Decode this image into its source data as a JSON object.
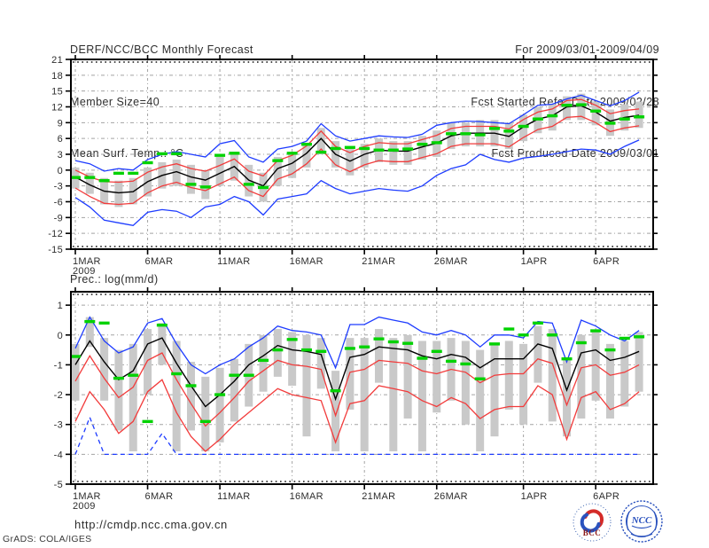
{
  "header": {
    "title": "DERF/NCC/BCC Monthly Forecast",
    "member_size": "Member Size=40",
    "panel1_label": "Mean Surf. Temp.: °C",
    "valid_range": "For 2009/03/01-2009/04/09",
    "refer_date": "Fcst Started Refer Date 2009/02/28",
    "produced_date": "Fcst Produced Date 2009/03/01"
  },
  "panel2_label": "Prec.: log(mm/d)",
  "footer": {
    "url": "http://cmdp.ncc.cma.gov.cn",
    "grads_credit": "GrADS: COLA/IGES",
    "bcc_label": "BCC",
    "ncc_label": "NCC"
  },
  "colors": {
    "line_blue": "#1e3cff",
    "line_red": "#f23b3b",
    "line_black": "#000000",
    "marker_green": "#00d200",
    "bar_gray": "#c9c9c9",
    "grid_gray": "#a3a3a3",
    "frame": "#000000",
    "text": "#2e2e2e",
    "logo_red": "#d42b28",
    "logo_blue": "#2a52be"
  },
  "chart_data": [
    {
      "type": "line",
      "title": "Mean Surf. Temp.: °C",
      "x_tick_labels": [
        "1MAR",
        "6MAR",
        "11MAR",
        "16MAR",
        "21MAR",
        "26MAR",
        "1APR",
        "6APR"
      ],
      "x_tick_positions": [
        0,
        5,
        10,
        15,
        20,
        25,
        31,
        36
      ],
      "x_year_label": "2009",
      "n_days": 40,
      "ylim": [
        -15,
        21
      ],
      "yticks": [
        21,
        18,
        15,
        12,
        9,
        6,
        3,
        0,
        -3,
        -6,
        -9,
        -12,
        -15
      ],
      "grid": true,
      "legend": "none",
      "series": [
        {
          "name": "ensemble-max",
          "color": "#1e3cff",
          "dashed": false,
          "values": [
            1.8,
            1.2,
            -0.2,
            0.3,
            0,
            2,
            3,
            3.5,
            3,
            2.5,
            5,
            5.6,
            2.5,
            1.5,
            4,
            4.5,
            5.5,
            8.8,
            6.5,
            5.5,
            6,
            6.5,
            6.3,
            6.2,
            6.8,
            8.5,
            9,
            9.3,
            9.2,
            9,
            8.8,
            10.5,
            12.3,
            12.5,
            13.5,
            14.2,
            13.2,
            12.2,
            13.2,
            14.8
          ]
        },
        {
          "name": "ensemble-min",
          "color": "#1e3cff",
          "dashed": false,
          "values": [
            -5.2,
            -7,
            -9.5,
            -10,
            -10.5,
            -8,
            -7.5,
            -7.8,
            -9,
            -7,
            -6.5,
            -5,
            -6,
            -8.5,
            -5.5,
            -5,
            -4.5,
            -2,
            -3.5,
            -4.5,
            -4,
            -3.5,
            -3.8,
            -4,
            -3,
            -1,
            0.3,
            1,
            3,
            2,
            1.5,
            2.3,
            2.6,
            3,
            3.5,
            4,
            3.8,
            3,
            4.5,
            5.7
          ]
        },
        {
          "name": "upper-bound",
          "color": "#f23b3b",
          "dashed": false,
          "values": [
            0,
            -1.3,
            -2.2,
            -2.3,
            -2.1,
            -0.4,
            0.6,
            1.2,
            0.3,
            -0.2,
            0.9,
            2.1,
            -0.2,
            -1.1,
            1.8,
            2.8,
            4.6,
            7.4,
            4.5,
            3.3,
            4.5,
            5.2,
            5,
            5,
            5.8,
            6.6,
            7.9,
            8.3,
            8.3,
            8.3,
            7.8,
            9.6,
            11,
            11.6,
            13.2,
            13.4,
            12.3,
            10.7,
            11.3,
            11.6
          ]
        },
        {
          "name": "lower-bound",
          "color": "#f23b3b",
          "dashed": false,
          "values": [
            -3.4,
            -5,
            -6.3,
            -6.5,
            -6.3,
            -4.3,
            -3,
            -2.3,
            -3.3,
            -3.9,
            -2.6,
            -1.3,
            -3.9,
            -5,
            -1.7,
            -0.7,
            1.2,
            4,
            1,
            -0.3,
            1,
            1.8,
            1.6,
            1.6,
            2.4,
            3.1,
            4.5,
            5,
            5,
            5,
            4.4,
            6.2,
            7.7,
            8.3,
            10,
            10.2,
            9,
            7.3,
            8,
            8.4
          ]
        },
        {
          "name": "ensemble-mean",
          "color": "#000000",
          "dashed": false,
          "values": [
            -1.3,
            -2.8,
            -4,
            -4.3,
            -4.1,
            -2.2,
            -1,
            -0.3,
            -1.3,
            -1.9,
            -0.6,
            0.7,
            -1.9,
            -3,
            0.3,
            1.3,
            3.2,
            6,
            3,
            1.7,
            3,
            3.8,
            3.6,
            3.6,
            4.4,
            5.1,
            6.5,
            7,
            7,
            7,
            6.4,
            8.2,
            9.7,
            10.3,
            12,
            12.2,
            11,
            9.3,
            10,
            10.4
          ]
        }
      ],
      "spread_bars": {
        "name": "ensemble-spread",
        "color": "#c9c9c9",
        "ranges": [
          [
            -3.5,
            0.5
          ],
          [
            -4.5,
            -0.5
          ],
          [
            -6.5,
            -1.5
          ],
          [
            -7,
            -2
          ],
          [
            -6.5,
            -1.5
          ],
          [
            -5,
            0.5
          ],
          [
            -3.5,
            1.5
          ],
          [
            -3,
            2
          ],
          [
            -4.5,
            1
          ],
          [
            -5.5,
            0
          ],
          [
            -3,
            2.5
          ],
          [
            -2,
            3.5
          ],
          [
            -5,
            1
          ],
          [
            -6,
            -0.5
          ],
          [
            -3,
            2.5
          ],
          [
            -1.5,
            3
          ],
          [
            0.5,
            5
          ],
          [
            3,
            8
          ],
          [
            0.5,
            5.5
          ],
          [
            -1,
            4
          ],
          [
            0.5,
            5
          ],
          [
            1.5,
            6
          ],
          [
            1,
            5.5
          ],
          [
            1,
            5.5
          ],
          [
            2,
            6.5
          ],
          [
            2.5,
            7.5
          ],
          [
            4,
            9
          ],
          [
            4.5,
            9
          ],
          [
            4.5,
            9.5
          ],
          [
            4.5,
            9.5
          ],
          [
            4,
            9
          ],
          [
            5.5,
            10.5
          ],
          [
            7,
            12
          ],
          [
            7.5,
            12.5
          ],
          [
            9.5,
            14
          ],
          [
            9.5,
            14.5
          ],
          [
            8.5,
            13
          ],
          [
            6.5,
            11.5
          ],
          [
            7.5,
            12.5
          ],
          [
            8,
            13
          ]
        ]
      },
      "obs_markers": {
        "name": "observation",
        "color": "#00d200",
        "values": [
          -1.4,
          -1.4,
          -2,
          -0.6,
          -0.6,
          1.4,
          3.1,
          3.1,
          -2.7,
          -3.2,
          2.8,
          3.2,
          -2.7,
          -3.3,
          1.8,
          3.2,
          4.9,
          3.4,
          4.1,
          4.3,
          4.1,
          3.8,
          3.8,
          4,
          4.9,
          5.2,
          6.9,
          6.9,
          6.7,
          7.9,
          7.4,
          8.3,
          9.7,
          10.3,
          12.3,
          12.4,
          11.2,
          8.9,
          9.7,
          10.1
        ]
      }
    },
    {
      "type": "line",
      "title": "Prec.: log(mm/d)",
      "x_tick_labels": [
        "1MAR",
        "6MAR",
        "11MAR",
        "16MAR",
        "21MAR",
        "26MAR",
        "1APR",
        "6APR"
      ],
      "x_tick_positions": [
        0,
        5,
        10,
        15,
        20,
        25,
        31,
        36
      ],
      "x_year_label": "2009",
      "n_days": 40,
      "ylim": [
        -5,
        1
      ],
      "yticks": [
        1,
        0,
        -1,
        -2,
        -3,
        -4,
        -5
      ],
      "grid": true,
      "legend": "none",
      "series": [
        {
          "name": "ensemble-max",
          "color": "#1e3cff",
          "dashed": false,
          "values": [
            -0.45,
            0.6,
            -0.2,
            -0.6,
            -0.4,
            0.4,
            0.55,
            -0.3,
            -1,
            -1.3,
            -1,
            -0.8,
            -0.4,
            -0.1,
            0.3,
            0.15,
            0.1,
            0,
            -1.1,
            0.35,
            0.35,
            0.6,
            0.5,
            0.4,
            0.1,
            0,
            0.15,
            0,
            -0.4,
            0,
            0,
            -0.1,
            0.45,
            0.4,
            -0.9,
            0.5,
            0.3,
            0,
            -0.2,
            0.15
          ]
        },
        {
          "name": "ensemble-min",
          "color": "#1e3cff",
          "dashed": true,
          "values": [
            -4,
            -2.76,
            -4,
            -4,
            -4,
            -4,
            -3.3,
            -4,
            -4,
            -4,
            -4,
            -4,
            -4,
            -4,
            -4,
            -4,
            -4,
            -4,
            -4,
            -4,
            -4,
            -4,
            -4,
            -4,
            -4,
            -4,
            -4,
            -4,
            -4,
            -4,
            -4,
            -4,
            -4,
            -4,
            -4,
            -4,
            -4,
            -4,
            -4,
            -4
          ]
        },
        {
          "name": "upper-tercile",
          "color": "#f23b3b",
          "dashed": false,
          "values": [
            -1.55,
            -0.7,
            -1.45,
            -2.1,
            -1.75,
            -0.85,
            -0.6,
            -1.5,
            -2.3,
            -3.05,
            -2.6,
            -2.1,
            -1.55,
            -1.2,
            -0.85,
            -1,
            -1.05,
            -1.15,
            -2.7,
            -1.25,
            -1.15,
            -0.85,
            -0.9,
            -0.95,
            -1.2,
            -1.3,
            -1.15,
            -1.25,
            -1.6,
            -1.35,
            -1.3,
            -1.3,
            -0.8,
            -0.95,
            -2.35,
            -1.1,
            -1,
            -1.35,
            -1.25,
            -1
          ]
        },
        {
          "name": "lower-tercile",
          "color": "#f23b3b",
          "dashed": false,
          "values": [
            -2.9,
            -1.9,
            -2.5,
            -3.3,
            -2.9,
            -1.9,
            -1.5,
            -2.6,
            -3.4,
            -3.9,
            -3.5,
            -3,
            -2.6,
            -2.2,
            -1.8,
            -2,
            -2.1,
            -2.2,
            -3.6,
            -2.3,
            -2.2,
            -1.7,
            -1.8,
            -1.9,
            -2.2,
            -2.4,
            -2.1,
            -2.3,
            -2.8,
            -2.5,
            -2.4,
            -2.4,
            -1.7,
            -2,
            -3.5,
            -2.1,
            -1.9,
            -2.5,
            -2.3,
            -1.9
          ]
        },
        {
          "name": "ensemble-mean",
          "color": "#000000",
          "dashed": false,
          "values": [
            -1,
            -0.2,
            -0.9,
            -1.5,
            -1.2,
            -0.3,
            -0.1,
            -0.95,
            -1.7,
            -2.4,
            -2,
            -1.55,
            -1,
            -0.7,
            -0.35,
            -0.5,
            -0.55,
            -0.65,
            -2.15,
            -0.75,
            -0.65,
            -0.4,
            -0.45,
            -0.5,
            -0.7,
            -0.8,
            -0.65,
            -0.75,
            -1.1,
            -0.8,
            -0.8,
            -0.8,
            -0.3,
            -0.45,
            -1.85,
            -0.6,
            -0.5,
            -0.85,
            -0.75,
            -0.55
          ]
        }
      ],
      "spread_bars": {
        "name": "ensemble-spread",
        "color": "#c9c9c9",
        "ranges": [
          [
            -2.2,
            -0.3
          ],
          [
            -0.4,
            0.6
          ],
          [
            -2.2,
            -0.1
          ],
          [
            -3.2,
            -0.5
          ],
          [
            -3.9,
            -0.3
          ],
          [
            -2,
            0.2
          ],
          [
            -1,
            0.4
          ],
          [
            -3.9,
            -0.2
          ],
          [
            -3.2,
            -0.9
          ],
          [
            -3.9,
            -1.4
          ],
          [
            -3.6,
            -1.1
          ],
          [
            -2.9,
            -0.8
          ],
          [
            -2.4,
            -0.3
          ],
          [
            -1.9,
            0
          ],
          [
            -1.4,
            0.2
          ],
          [
            -1.7,
            0.1
          ],
          [
            -3.4,
            0
          ],
          [
            -1.8,
            -0.1
          ],
          [
            -3.9,
            -1.2
          ],
          [
            -2.5,
            -0.1
          ],
          [
            -3.9,
            -0.1
          ],
          [
            -1.6,
            0.2
          ],
          [
            -3.9,
            -0.1
          ],
          [
            -2.8,
            0
          ],
          [
            -3.9,
            -0.2
          ],
          [
            -2.6,
            -0.2
          ],
          [
            -2.2,
            -0.1
          ],
          [
            -3,
            -0.2
          ],
          [
            -3.9,
            -0.5
          ],
          [
            -3.4,
            -0.3
          ],
          [
            -2.5,
            -0.2
          ],
          [
            -3,
            -0.3
          ],
          [
            -1.6,
            0.3
          ],
          [
            -2.9,
            0.2
          ],
          [
            -3.4,
            -0.8
          ],
          [
            -2.8,
            0
          ],
          [
            -2.2,
            0.1
          ],
          [
            -2.8,
            -0.3
          ],
          [
            -2.4,
            -0.2
          ],
          [
            -1.9,
            0.1
          ]
        ]
      },
      "obs_markers": {
        "name": "observation",
        "color": "#00d200",
        "values": [
          -0.72,
          0.45,
          0.4,
          -1.45,
          -1.35,
          -2.9,
          0.33,
          -1.3,
          -1.7,
          -2.9,
          -2,
          -1.35,
          -1.35,
          -0.85,
          -0.5,
          -0.15,
          -0.5,
          -0.55,
          -1.87,
          -0.45,
          -0.4,
          -0.13,
          -0.23,
          -0.28,
          -0.78,
          -0.55,
          -0.88,
          -0.97,
          -1.47,
          -0.3,
          0.2,
          0,
          0.4,
          0,
          -0.8,
          -0.26,
          0.14,
          -0.5,
          -0.11,
          -0.06
        ]
      }
    }
  ]
}
